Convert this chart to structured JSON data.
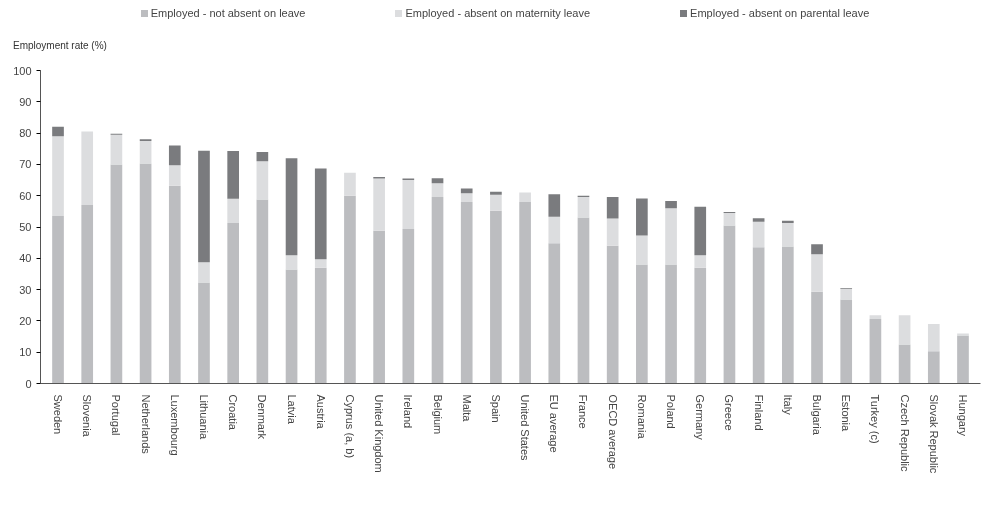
{
  "chart_data": {
    "type": "bar",
    "stacked": true,
    "ylabel": "Employment rate (%)",
    "ylim": [
      0,
      100
    ],
    "yticks": [
      0,
      10,
      20,
      30,
      40,
      50,
      60,
      70,
      80,
      90,
      100
    ],
    "grid": false,
    "legend": "top",
    "categories": [
      "Sweden",
      "Slovenia",
      "Portugal",
      "Netherlands",
      "Luxembourg",
      "Lithuania",
      "Croatia",
      "Denmark",
      "Latvia",
      "Austria",
      "Cyprus (a, b)",
      "United Kingdom",
      "Ireland",
      "Belgium",
      "Malta",
      "Spain",
      "United States",
      "EU average",
      "France",
      "OECD average",
      "Romania",
      "Poland",
      "Germany",
      "Greece",
      "Finland",
      "Italy",
      "Bulgaria",
      "Estonia",
      "Turkey (c)",
      "Czech Republic",
      "Slovak Republic",
      "Hungary"
    ],
    "series": [
      {
        "name": "Employed - not absent on leave",
        "color": "#bcbdc0",
        "values": [
          53.5,
          57,
          70,
          70.3,
          63.2,
          32.3,
          51.3,
          58.8,
          36.4,
          37,
          60,
          48.8,
          49.4,
          59.6,
          58,
          55.2,
          58,
          44.8,
          53,
          44,
          38,
          38,
          37,
          50.5,
          43.5,
          43.8,
          29.3,
          26.8,
          20.6,
          12.5,
          10.3,
          15.3
        ]
      },
      {
        "name": "Employed - absent on maternity leave",
        "color": "#dcdddf",
        "values": [
          25.5,
          23.5,
          9.5,
          7.2,
          6.5,
          6.4,
          7.7,
          12.2,
          4.6,
          2.7,
          7.3,
          16.7,
          15.6,
          4.4,
          2.8,
          5.1,
          3,
          8.5,
          6.6,
          8.7,
          9.3,
          18,
          4,
          4,
          8.2,
          7.5,
          12,
          3.5,
          1.2,
          9.3,
          8.7,
          0.7
        ]
      },
      {
        "name": "Employed - absent on parental leave",
        "color": "#7a7b7e",
        "values": [
          3,
          0,
          0.3,
          0.5,
          6.3,
          35.7,
          15.3,
          3,
          31,
          29,
          0,
          0.5,
          0.5,
          1.6,
          1.5,
          1,
          0,
          7.2,
          0.4,
          6.9,
          11.8,
          2.3,
          15.5,
          0.3,
          1.1,
          0.7,
          3.2,
          0.2,
          0,
          0,
          0,
          0
        ]
      }
    ]
  }
}
